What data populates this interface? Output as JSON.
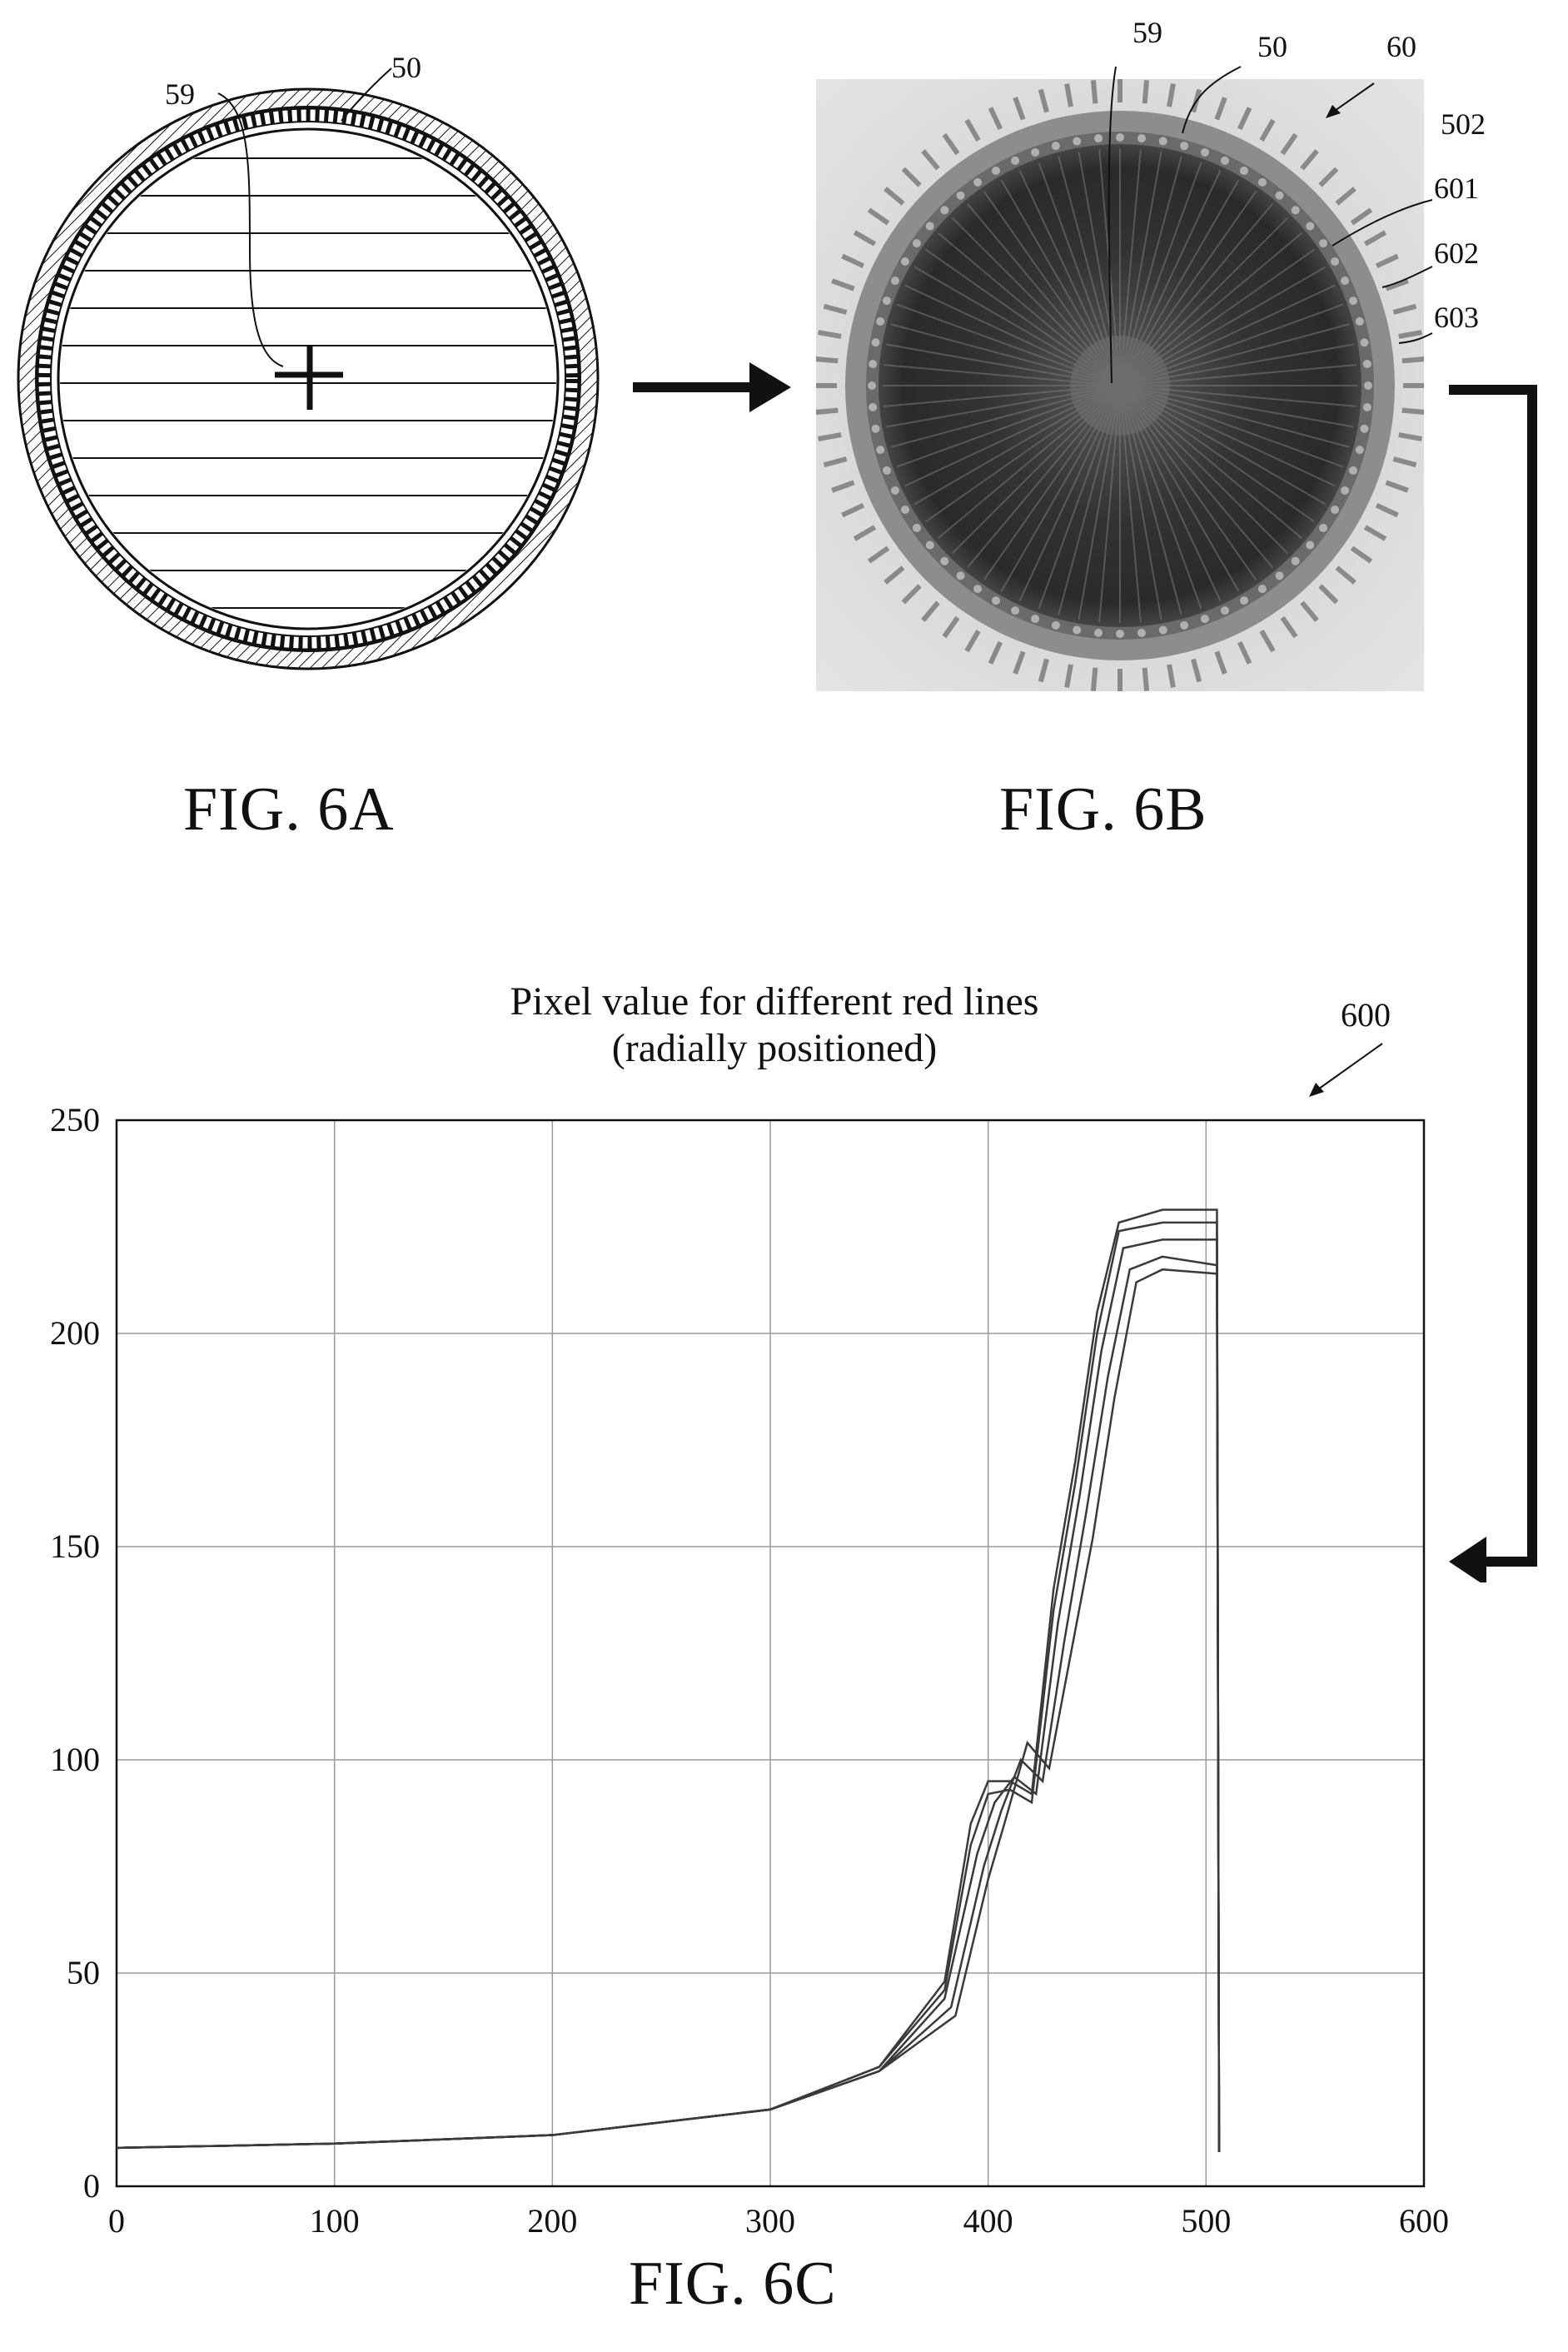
{
  "figures": {
    "fig6a": {
      "caption": "FIG. 6A",
      "labels": [
        "59",
        "50"
      ]
    },
    "fig6b": {
      "caption": "FIG. 6B",
      "labels": [
        "59",
        "50",
        "60",
        "502",
        "601",
        "602",
        "603"
      ]
    },
    "fig6c": {
      "caption": "FIG. 6C",
      "ref_label": "600"
    }
  },
  "chart_data": {
    "type": "line",
    "title": "Pixel value for different red lines",
    "subtitle": "(radially positioned)",
    "xlabel": "",
    "ylabel": "",
    "xlim": [
      0,
      600
    ],
    "ylim": [
      0,
      250
    ],
    "xticks": [
      0,
      100,
      200,
      300,
      400,
      500,
      600
    ],
    "yticks": [
      0,
      50,
      100,
      150,
      200,
      250
    ],
    "grid": true,
    "series": [
      {
        "offset_x": -6,
        "offset_y": 2,
        "plateau": 229,
        "x": [
          0,
          100,
          200,
          300,
          350,
          380,
          392,
          400,
          410,
          420,
          430,
          440,
          450,
          460,
          480,
          505,
          506
        ],
        "values": [
          9,
          10,
          12,
          18,
          28,
          48,
          85,
          95,
          95,
          92,
          140,
          170,
          205,
          226,
          229,
          229,
          8
        ]
      },
      {
        "offset_x": -3,
        "offset_y": 1,
        "plateau": 226,
        "x": [
          0,
          100,
          200,
          300,
          350,
          380,
          392,
          400,
          410,
          420,
          430,
          440,
          450,
          460,
          480,
          505,
          506
        ],
        "values": [
          9,
          10,
          12,
          18,
          28,
          46,
          80,
          92,
          93,
          90,
          135,
          165,
          200,
          224,
          226,
          226,
          8
        ]
      },
      {
        "offset_x": 0,
        "offset_y": 0,
        "plateau": 222,
        "x": [
          0,
          100,
          200,
          300,
          350,
          380,
          395,
          403,
          412,
          422,
          432,
          442,
          452,
          462,
          480,
          505,
          506
        ],
        "values": [
          9,
          10,
          12,
          18,
          27,
          44,
          78,
          90,
          96,
          92,
          132,
          162,
          196,
          220,
          222,
          222,
          8
        ]
      },
      {
        "offset_x": 3,
        "offset_y": -1,
        "plateau": 218,
        "x": [
          0,
          100,
          200,
          300,
          350,
          383,
          398,
          406,
          415,
          425,
          435,
          445,
          455,
          465,
          480,
          505,
          506
        ],
        "values": [
          9,
          10,
          12,
          18,
          27,
          42,
          75,
          88,
          100,
          95,
          128,
          158,
          190,
          215,
          218,
          216,
          8
        ]
      },
      {
        "offset_x": 6,
        "offset_y": -2,
        "plateau": 215,
        "x": [
          0,
          100,
          200,
          300,
          350,
          385,
          400,
          408,
          418,
          428,
          438,
          448,
          458,
          468,
          480,
          505,
          506
        ],
        "values": [
          9,
          10,
          12,
          18,
          27,
          40,
          72,
          86,
          104,
          98,
          125,
          152,
          185,
          212,
          215,
          214,
          8
        ]
      }
    ]
  },
  "colors": {
    "ink": "#111111",
    "grid": "#9a9a9a",
    "series": "#3a3a3a",
    "photo_bg": "#d6d6d6"
  }
}
